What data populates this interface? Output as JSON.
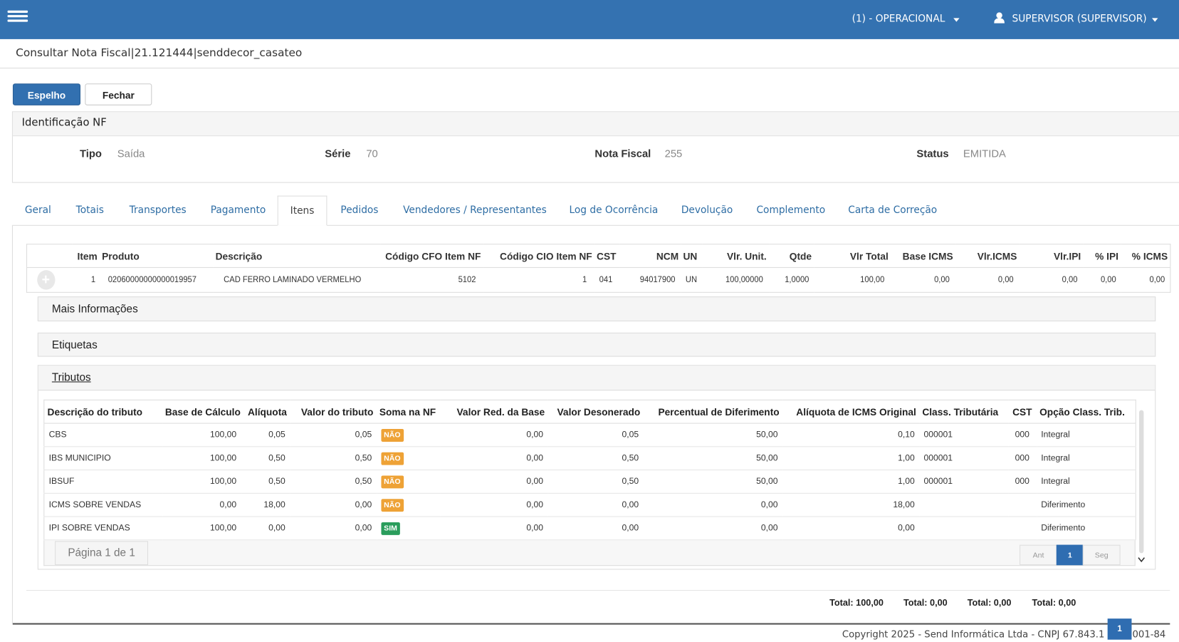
{
  "header": {
    "environment": "(1) - OPERACIONAL",
    "user": "SUPERVISOR (SUPERVISOR)"
  },
  "page": {
    "title": "Consultar Nota Fiscal|21.121444|senddecor_casateo"
  },
  "buttons": [
    "Espelho",
    "Fechar"
  ],
  "identification": {
    "title": "Identificação NF",
    "fields": [
      {
        "label": "Tipo",
        "value": "Saída"
      },
      {
        "label": "Série",
        "value": "70"
      },
      {
        "label": "Nota Fiscal",
        "value": "255"
      },
      {
        "label": "Status",
        "value": "EMITIDA"
      }
    ]
  },
  "tabs": [
    "Geral",
    "Totais",
    "Transportes",
    "Pagamento",
    "Itens",
    "Pedidos",
    "Vendedores / Representantes",
    "Log de Ocorrência",
    "Devolução",
    "Complemento",
    "Carta de Correção"
  ],
  "items": {
    "columns": [
      "Item",
      "Produto",
      "Descrição",
      "Código CFO Item NF",
      "Código CIO Item NF",
      "CST",
      "NCM",
      "UN",
      "Vlr. Unit.",
      "Qtde",
      "Vlr Total",
      "Base ICMS",
      "Vlr.ICMS",
      "Vlr.IPI",
      "% IPI",
      "% ICMS"
    ],
    "rows": [
      [
        "1",
        "02060000000000019957",
        "CAD FERRO LAMINADO VERMELHO",
        "5102",
        "1",
        "041",
        "94017900",
        "UN",
        "100,00000",
        "1,0000",
        "100,00",
        "0,00",
        "0,00",
        "0,00",
        "0,00",
        "0,00"
      ]
    ]
  },
  "panels": [
    "Mais Informações",
    "Etiquetas",
    "Tributos"
  ],
  "tributos": {
    "columns": [
      "Descrição do tributo",
      "Base de Cálculo",
      "Alíquota",
      "Valor do tributo",
      "Soma na NF",
      "Valor Red. da Base",
      "Valor Desonerado",
      "Percentual de Diferimento",
      "Alíquota de ICMS Original",
      "Class. Tributária",
      "CST",
      "Opção Class. Trib."
    ],
    "rows": [
      [
        "CBS",
        "100,00",
        "0,05",
        "0,05",
        "NÃO",
        "0,00",
        "0,05",
        "50,00",
        "0,10",
        "000001",
        "000",
        "Integral"
      ],
      [
        "IBS MUNICIPIO",
        "100,00",
        "0,50",
        "0,50",
        "NÃO",
        "0,00",
        "0,50",
        "50,00",
        "1,00",
        "000001",
        "000",
        "Integral"
      ],
      [
        "IBSUF",
        "100,00",
        "0,50",
        "0,50",
        "NÃO",
        "0,00",
        "0,50",
        "50,00",
        "1,00",
        "000001",
        "000",
        "Integral"
      ],
      [
        "ICMS SOBRE VENDAS",
        "0,00",
        "18,00",
        "0,00",
        "NÃO",
        "0,00",
        "0,00",
        "0,00",
        "18,00",
        "",
        "",
        "Diferimento"
      ],
      [
        "IPI SOBRE VENDAS",
        "100,00",
        "0,00",
        "0,00",
        "SIM",
        "0,00",
        "0,00",
        "0,00",
        "0,00",
        "",
        "",
        "Diferimento"
      ]
    ],
    "badge_colors": {
      "NÃO": "#eea236",
      "SIM": "#2a9d5c"
    },
    "pager": {
      "info": "Página 1 de 1",
      "previous": "Ant",
      "current": "1",
      "next": "Seg"
    }
  },
  "totals": [
    "Total: 100,00",
    "Total: 0,00",
    "Total: 0,00",
    "Total: 0,00"
  ],
  "footer": {
    "copyright_start": "Copyright 2025 - Send Informática Ltda - CNPJ 67.843.1",
    "copyright_end": "001-84",
    "badge": "1"
  }
}
